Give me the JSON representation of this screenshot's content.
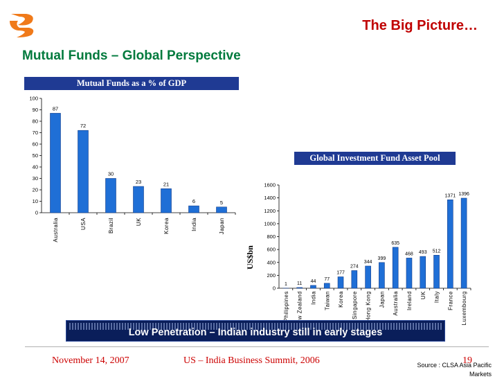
{
  "header": {
    "title": "The Big Picture…",
    "subtitle": "Mutual Funds – Global Perspective"
  },
  "banner": {
    "text": "Low Penetration – Indian industry still in early stages"
  },
  "footer": {
    "date": "November 14, 2007",
    "event": "US – India Business Summit, 2006",
    "page": "19",
    "source": "Source : CLSA Asia Pacific Markets"
  },
  "colors": {
    "bar": "#1f6fd6",
    "title": "#c00000",
    "subtitle": "#007a3d",
    "title_box": "#1f3a93",
    "banner": "#0a1e5a"
  },
  "chart_data": [
    {
      "type": "bar",
      "title": "Mutual Funds as a % of GDP",
      "categories": [
        "Australia",
        "USA",
        "Brazil",
        "UK",
        "Korea",
        "India",
        "Japan"
      ],
      "values": [
        87,
        72,
        30,
        23,
        21,
        6,
        5
      ],
      "ylabel": "",
      "ylim": [
        0,
        100
      ],
      "yticks": [
        0,
        10,
        20,
        30,
        40,
        50,
        60,
        70,
        80,
        90,
        100
      ],
      "grid": false
    },
    {
      "type": "bar",
      "title": "Global Investment Fund Asset Pool",
      "categories": [
        "Philippines",
        "New Zealand",
        "India",
        "Taiwan",
        "Korea",
        "Singapore",
        "Hong Kong",
        "Japan",
        "Australia",
        "Ireland",
        "UK",
        "Italy",
        "France",
        "Luxembourg"
      ],
      "values": [
        1,
        11,
        44,
        77,
        177,
        274,
        344,
        399,
        635,
        468,
        493,
        512,
        1371,
        1396
      ],
      "ylabel": "US$bn",
      "ylim": [
        0,
        1600
      ],
      "yticks": [
        0,
        200,
        400,
        600,
        800,
        1000,
        1200,
        1400,
        1600
      ],
      "grid": false
    }
  ]
}
